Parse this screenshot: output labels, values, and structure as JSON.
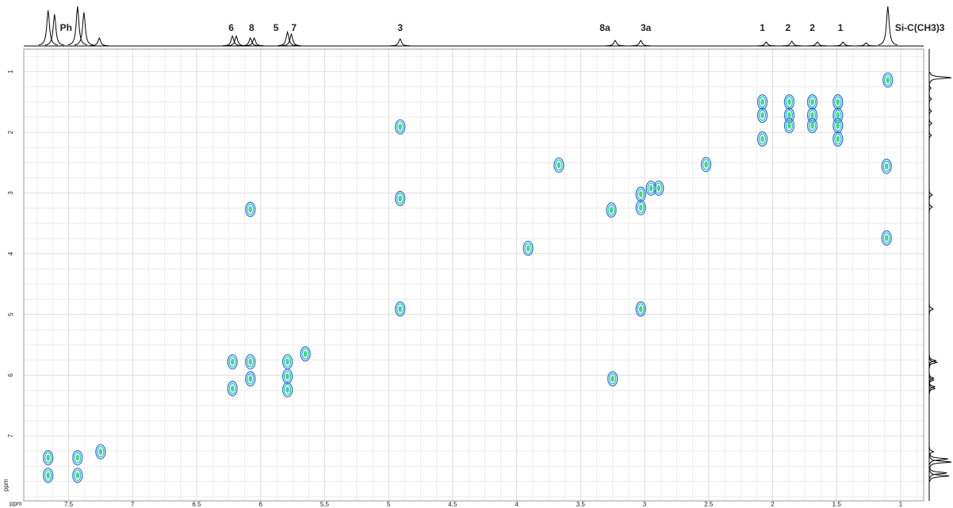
{
  "chart_data": {
    "type": "contour",
    "x_label": "ppm",
    "y_label": "ppm",
    "xlim": [
      7.85,
      0.82
    ],
    "ylim": [
      0.63,
      8.07
    ],
    "xticks": [
      7.5,
      7,
      6.5,
      6,
      5.5,
      5,
      4.5,
      4,
      3.5,
      3,
      2.5,
      2,
      1.5,
      1
    ],
    "yticks": [
      1,
      2,
      3,
      4,
      5,
      6,
      7
    ],
    "grid": true,
    "color": "#2a6fd6",
    "peaks": {
      "x": [
        1.1,
        1.49,
        1.49,
        1.49,
        1.49,
        1.69,
        1.69,
        1.69,
        1.87,
        1.87,
        1.87,
        2.08,
        2.08,
        2.08,
        2.52,
        2.89,
        2.95,
        3.03,
        3.03,
        3.26,
        3.67,
        3.91,
        4.91,
        4.91,
        4.91,
        3.03,
        6.08,
        6.22,
        6.22,
        6.08,
        6.08,
        5.79,
        5.79,
        5.79,
        5.65,
        7.66,
        7.66,
        7.43,
        7.43,
        7.25,
        3.25,
        1.11,
        1.11
      ],
      "y": [
        1.14,
        1.5,
        1.72,
        1.89,
        2.11,
        1.5,
        1.72,
        1.89,
        1.5,
        1.72,
        1.89,
        1.5,
        1.72,
        2.11,
        2.53,
        2.92,
        2.92,
        3.02,
        3.24,
        3.28,
        2.54,
        3.91,
        1.91,
        3.09,
        4.91,
        4.91,
        3.27,
        5.78,
        6.22,
        5.78,
        6.06,
        5.78,
        6.02,
        6.24,
        5.65,
        7.36,
        7.65,
        7.36,
        7.65,
        7.26,
        6.06,
        2.56,
        3.74
      ]
    },
    "projection": {
      "x": [
        7.66,
        7.61,
        7.43,
        7.38,
        7.26,
        6.22,
        6.19,
        6.08,
        6.05,
        5.79,
        5.76,
        4.91,
        3.23,
        3.03,
        2.05,
        1.85,
        1.65,
        1.45,
        1.27,
        1.1
      ],
      "heights": [
        90,
        80,
        100,
        85,
        20,
        25,
        25,
        20,
        20,
        35,
        30,
        18,
        14,
        14,
        10,
        12,
        10,
        10,
        8,
        100
      ]
    },
    "annotations": [
      {
        "label": "Ph",
        "x": 7.52
      },
      {
        "label": "6",
        "x": 6.23
      },
      {
        "label": "8",
        "x": 6.07
      },
      {
        "label": "5",
        "x": 5.88
      },
      {
        "label": "7",
        "x": 5.74
      },
      {
        "label": "3",
        "x": 4.91
      },
      {
        "label": "8a",
        "x": 3.31
      },
      {
        "label": "3a",
        "x": 2.99
      },
      {
        "label": "1",
        "x": 2.08
      },
      {
        "label": "2",
        "x": 1.88
      },
      {
        "label": "2",
        "x": 1.69
      },
      {
        "label": "1",
        "x": 1.47
      },
      {
        "label": "Si-C(CH3)3",
        "x": 0.85
      }
    ]
  }
}
